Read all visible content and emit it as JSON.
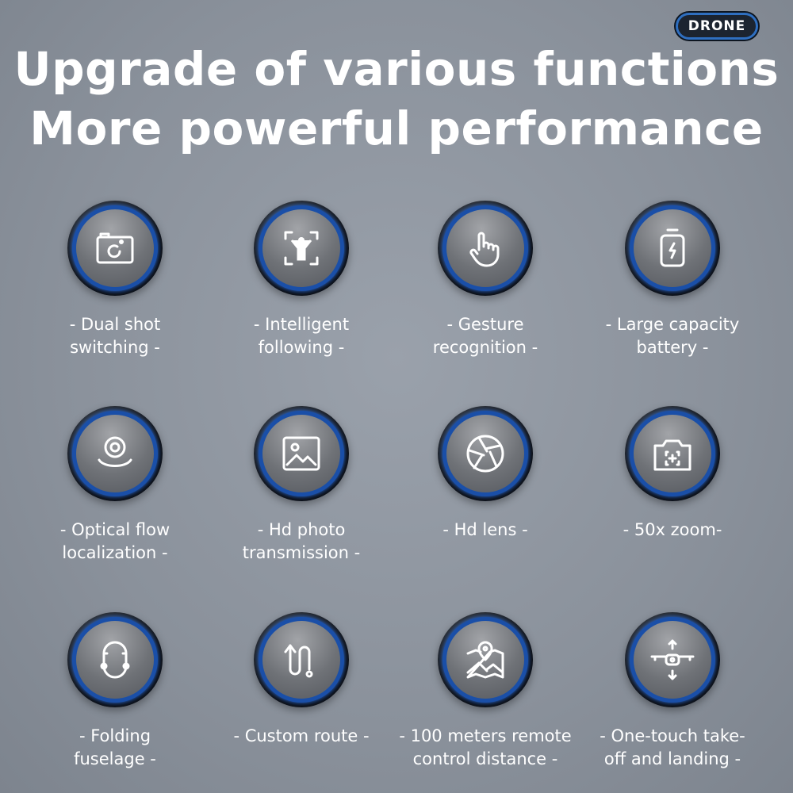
{
  "badge": "DRONE",
  "title": {
    "line1": "Upgrade of various functions",
    "line2": "More powerful performance"
  },
  "features": [
    {
      "icon": "camera-switch-icon",
      "line1": "- Dual shot",
      "line2": "switching -"
    },
    {
      "icon": "person-tracking-icon",
      "line1": "- Intelligent",
      "line2": "following -"
    },
    {
      "icon": "hand-gesture-icon",
      "line1": "- Gesture",
      "line2": "recognition -"
    },
    {
      "icon": "battery-icon",
      "line1": "- Large capacity",
      "line2": "battery -"
    },
    {
      "icon": "optical-flow-icon",
      "line1": "- Optical flow",
      "line2": "localization -"
    },
    {
      "icon": "image-icon",
      "line1": "- Hd photo",
      "line2": "transmission -"
    },
    {
      "icon": "aperture-icon",
      "line1": "- Hd lens -",
      "line2": ""
    },
    {
      "icon": "camera-zoom-icon",
      "line1": "- 50x zoom-",
      "line2": ""
    },
    {
      "icon": "folding-drone-icon",
      "line1": "- Folding",
      "line2": "fuselage -"
    },
    {
      "icon": "route-icon",
      "line1": "- Custom route -",
      "line2": ""
    },
    {
      "icon": "map-pin-icon",
      "line1": "- 100 meters remote",
      "line2": "control distance -"
    },
    {
      "icon": "drone-takeoff-icon",
      "line1": "- One-touch take-",
      "line2": "off and landing -"
    }
  ],
  "colors": {
    "accent": "#1a4fa8",
    "background": "#8a919b"
  }
}
